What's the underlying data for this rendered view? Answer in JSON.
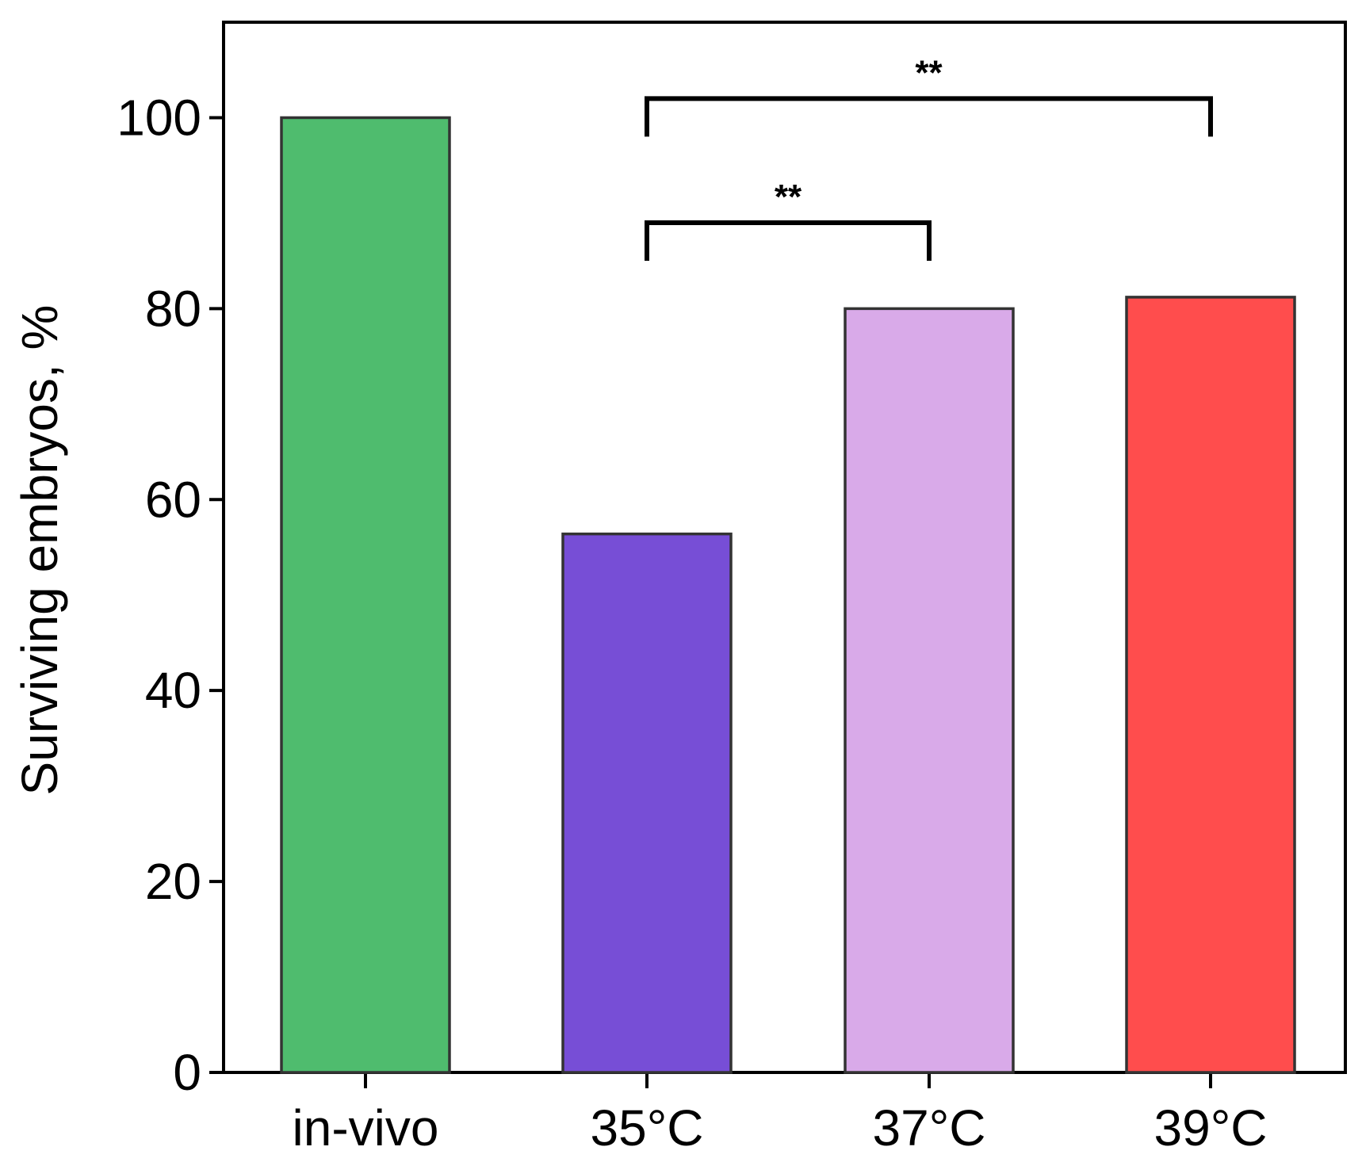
{
  "chart_data": {
    "type": "bar",
    "title": "",
    "xlabel": "",
    "ylabel": "Surviving embryos, %",
    "categories": [
      "in-vivo",
      "35°C",
      "37°C",
      "39°C"
    ],
    "values": [
      100,
      56.4,
      80,
      81.2
    ],
    "colors": [
      "#4FBC6E",
      "#774ED6",
      "#D9AAE9",
      "#FF4D4D"
    ],
    "ylim": [
      0,
      110
    ],
    "yticks": [
      0,
      20,
      40,
      60,
      80,
      100
    ],
    "ytick_labels": [
      "0",
      "20",
      "40",
      "60",
      "80",
      "100"
    ],
    "significance": [
      {
        "from": "35°C",
        "to": "37°C",
        "label": "**",
        "level": 89
      },
      {
        "from": "35°C",
        "to": "39°C",
        "label": "**",
        "level": 102
      }
    ]
  }
}
